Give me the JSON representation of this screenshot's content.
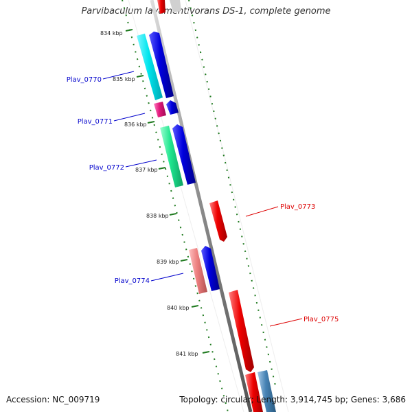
{
  "title": "Parvibaculum lavamentivorans DS-1, complete genome",
  "footer": {
    "accession": "Accession: NC_009719",
    "stats": "Topology: circular; Length: 3,914,745 bp; Genes: 3,686"
  },
  "scale": {
    "unit": "kbp",
    "ticks": [
      "834 kbp",
      "835 kbp",
      "836 kbp",
      "837 kbp",
      "838 kbp",
      "839 kbp",
      "840 kbp",
      "841 kbp"
    ]
  },
  "colors": {
    "backbone": "#8a8a8a",
    "ruler": "#1f7a1f",
    "label_forward": "#0000cc",
    "label_reverse": "#dd0000"
  },
  "genes": [
    {
      "id": "Plav_0770",
      "labeled": true,
      "strand": "forward",
      "color": "#0000dd",
      "cog_color": "#00e5ee"
    },
    {
      "id": "Plav_0771",
      "labeled": true,
      "strand": "forward",
      "color": "#0000dd",
      "cog_color": "#e0187a"
    },
    {
      "id": "Plav_0772",
      "labeled": true,
      "strand": "forward",
      "color": "#0000dd",
      "cog_color": "#1ee58e"
    },
    {
      "id": "Plav_0773",
      "labeled": true,
      "strand": "reverse",
      "color": "#ee0000"
    },
    {
      "id": "Plav_0774",
      "labeled": true,
      "strand": "forward",
      "color": "#0000dd",
      "cog_color": "#ec7f7f"
    },
    {
      "id": "Plav_0775",
      "labeled": true,
      "strand": "reverse",
      "color": "#ee0000"
    },
    {
      "id": "Plav_0776",
      "labeled": false,
      "strand": "reverse",
      "color": "#ee0000",
      "cog_color": "#4682b4"
    }
  ]
}
